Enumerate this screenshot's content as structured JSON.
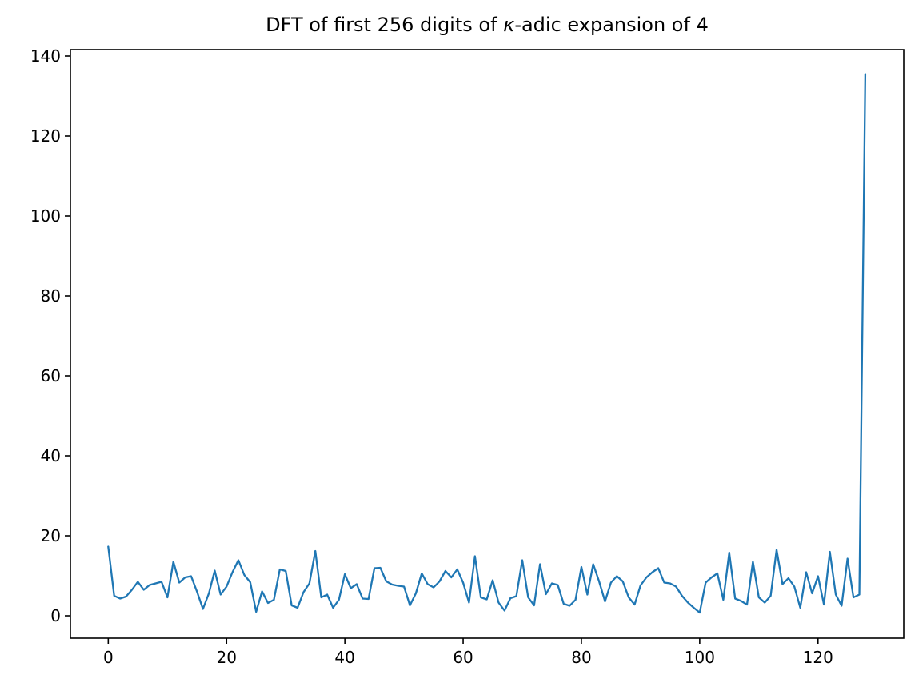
{
  "chart_data": {
    "type": "line",
    "title": "DFT of first 256 digits of κ-adic expansion of 4",
    "title_parts": {
      "prefix": "DFT of first 256 digits of ",
      "kappa": "κ",
      "suffix": "-adic expansion of 4"
    },
    "xlabel": "",
    "ylabel": "",
    "grid": false,
    "legend_position": "none",
    "line_color": "#1f77b4",
    "background_color": "#ffffff",
    "spine_color": "#000000",
    "xlim": [
      -6.4,
      134.5
    ],
    "ylim": [
      -5.6,
      141.6
    ],
    "x_ticks": [
      0,
      20,
      40,
      60,
      80,
      100,
      120
    ],
    "y_ticks": [
      0,
      20,
      40,
      60,
      80,
      100,
      120,
      140
    ],
    "x": [
      0,
      1,
      2,
      3,
      4,
      5,
      6,
      7,
      8,
      9,
      10,
      11,
      12,
      13,
      14,
      15,
      16,
      17,
      18,
      19,
      20,
      21,
      22,
      23,
      24,
      25,
      26,
      27,
      28,
      29,
      30,
      31,
      32,
      33,
      34,
      35,
      36,
      37,
      38,
      39,
      40,
      41,
      42,
      43,
      44,
      45,
      46,
      47,
      48,
      49,
      50,
      51,
      52,
      53,
      54,
      55,
      56,
      57,
      58,
      59,
      60,
      61,
      62,
      63,
      64,
      65,
      66,
      67,
      68,
      69,
      70,
      71,
      72,
      73,
      74,
      75,
      76,
      77,
      78,
      79,
      80,
      81,
      82,
      83,
      84,
      85,
      86,
      87,
      88,
      89,
      90,
      91,
      92,
      93,
      94,
      95,
      96,
      97,
      98,
      99,
      100,
      101,
      102,
      103,
      104,
      105,
      106,
      107,
      108,
      109,
      110,
      111,
      112,
      113,
      114,
      115,
      116,
      117,
      118,
      119,
      120,
      121,
      122,
      123,
      124,
      125,
      126,
      127,
      128
    ],
    "values": [
      17.3,
      5.0,
      4.3,
      4.8,
      6.5,
      8.5,
      6.5,
      7.7,
      8.1,
      8.5,
      4.6,
      13.5,
      8.3,
      9.6,
      9.9,
      6.0,
      1.7,
      5.6,
      11.3,
      5.3,
      7.3,
      10.9,
      13.9,
      10.2,
      8.4,
      1.0,
      6.1,
      3.2,
      4.0,
      11.6,
      11.2,
      2.6,
      2.0,
      5.9,
      8.1,
      16.2,
      4.6,
      5.3,
      2.0,
      4.0,
      10.4,
      6.9,
      7.9,
      4.3,
      4.2,
      11.9,
      12.0,
      8.6,
      7.8,
      7.5,
      7.3,
      2.6,
      5.6,
      10.6,
      7.9,
      7.1,
      8.6,
      11.2,
      9.6,
      11.6,
      8.3,
      3.3,
      14.9,
      4.6,
      4.1,
      8.9,
      3.3,
      1.3,
      4.4,
      4.9,
      13.9,
      4.6,
      2.6,
      12.9,
      5.4,
      8.1,
      7.7,
      3.0,
      2.5,
      4.0,
      12.2,
      5.3,
      12.9,
      8.6,
      3.6,
      8.3,
      9.9,
      8.6,
      4.6,
      2.8,
      7.6,
      9.6,
      10.9,
      11.9,
      8.3,
      8.1,
      7.3,
      5.0,
      3.3,
      2.0,
      0.8,
      8.3,
      9.6,
      10.6,
      4.0,
      15.8,
      4.3,
      3.7,
      2.8,
      13.5,
      4.6,
      3.3,
      5.0,
      16.5,
      7.9,
      9.4,
      7.3,
      2.0,
      10.9,
      5.6,
      9.9,
      2.8,
      16.0,
      5.3,
      2.5,
      14.3,
      4.6,
      5.3,
      135.5
    ]
  }
}
